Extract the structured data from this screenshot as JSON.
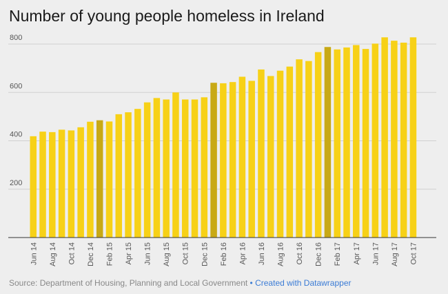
{
  "chart_data": {
    "type": "bar",
    "title": "Number of young people homeless in Ireland",
    "xlabel": "",
    "ylabel": "",
    "ylim": [
      0,
      840
    ],
    "yticks": [
      200,
      400,
      600,
      800
    ],
    "grid": true,
    "categories": [
      "Jun 14",
      "Jul 14",
      "Aug 14",
      "Sep 14",
      "Oct 14",
      "Nov 14",
      "Dec 14",
      "Jan 15",
      "Feb 15",
      "Mar 15",
      "Apr 15",
      "May 15",
      "Jun 15",
      "Jul 15",
      "Aug 15",
      "Sep 15",
      "Oct 15",
      "Nov 15",
      "Dec 15",
      "Jan 16",
      "Feb 16",
      "Mar 16",
      "Apr 16",
      "May 16",
      "Jun 16",
      "Jul 16",
      "Aug 16",
      "Sep 16",
      "Oct 16",
      "Nov 16",
      "Dec 16",
      "Jan 17",
      "Feb 17",
      "Mar 17",
      "Apr 17",
      "May 17",
      "Jun 17",
      "Jul 17",
      "Aug 17",
      "Sep 17",
      "Oct 17"
    ],
    "tick_labels": [
      "Jun 14",
      "",
      "Aug 14",
      "",
      "Oct 14",
      "",
      "Dec 14",
      "",
      "Feb 15",
      "",
      "Apr 15",
      "",
      "Jun 15",
      "",
      "Aug 15",
      "",
      "Oct 15",
      "",
      "Dec 15",
      "",
      "Feb 16",
      "",
      "Apr 16",
      "",
      "Jun 16",
      "",
      "Aug 16",
      "",
      "Oct 16",
      "",
      "Dec 16",
      "",
      "Feb 17",
      "",
      "Apr 17",
      "",
      "Jun 17",
      "",
      "Aug 17",
      "",
      "Oct 17"
    ],
    "values": [
      419,
      438,
      436,
      446,
      443,
      456,
      479,
      485,
      480,
      510,
      518,
      532,
      559,
      577,
      571,
      600,
      571,
      571,
      580,
      640,
      638,
      643,
      665,
      648,
      695,
      668,
      690,
      707,
      737,
      730,
      767,
      788,
      778,
      786,
      796,
      780,
      802,
      828,
      814,
      806,
      828
    ],
    "highlight": [
      "Jan 15",
      "Jan 16",
      "Jan 17"
    ],
    "colors": {
      "bar": "#f7d117",
      "highlight": "#c8a915",
      "grid": "#d0d0d0",
      "axis": "#333333"
    }
  },
  "footer": {
    "source": "Source: Department of Housing, Planning and Local Government",
    "separator": "•",
    "credit": "Created with Datawrapper"
  }
}
